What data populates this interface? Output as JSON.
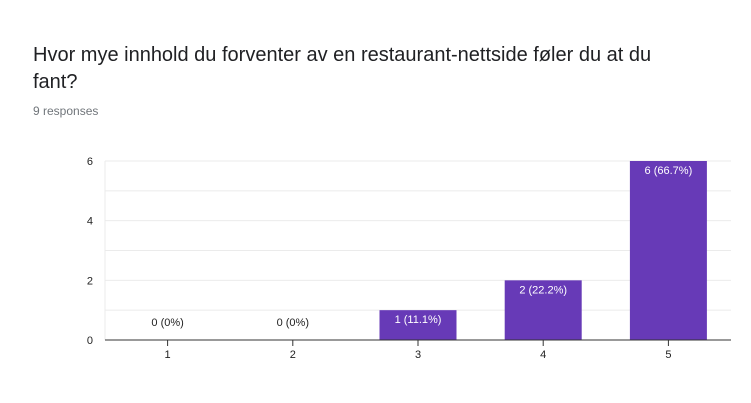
{
  "question": {
    "title": "Hvor mye innhold du forventer av en restaurant-nettside føler du at du fant?",
    "responses_label": "9 responses"
  },
  "colors": {
    "bar": "#673ab7",
    "gridline": "#ebebeb",
    "axis": "#333333",
    "title": "#202124",
    "subtitle": "#70757a"
  },
  "chart_data": {
    "type": "bar",
    "categories": [
      "1",
      "2",
      "3",
      "4",
      "5"
    ],
    "values": [
      0,
      0,
      1,
      2,
      6
    ],
    "data_labels": [
      "0 (0%)",
      "0 (0%)",
      "1 (11.1%)",
      "2 (22.2%)",
      "6 (66.7%)"
    ],
    "title": "",
    "xlabel": "",
    "ylabel": "",
    "ylim": [
      0,
      6
    ],
    "yticks": [
      0,
      2,
      4,
      6
    ],
    "grid": true,
    "legend": "none"
  }
}
